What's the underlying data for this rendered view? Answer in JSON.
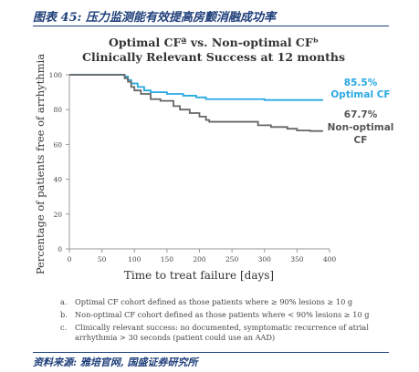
{
  "figure_label": "图表 45:  压力监测能有效提高房颤消融成功率",
  "source": "资料来源:  雅培官网, 国盛证券研究所",
  "chart_data": {
    "type": "line",
    "title_line1": "Optimal CFª vs. Non-optimal CFᵇ",
    "title_line2": "Clinically Relevant Success at 12 months",
    "xlabel": "Time to treat failure [days]",
    "ylabel": "Percentage of patients free of arrhythmia",
    "xlim": [
      0,
      400
    ],
    "ylim": [
      0,
      100
    ],
    "x_ticks": [
      "0",
      "50",
      "100",
      "150",
      "200",
      "250",
      "300",
      "350",
      "400"
    ],
    "y_ticks": [
      "0",
      "20",
      "40",
      "60",
      "80",
      "100"
    ],
    "grid": false,
    "series": [
      {
        "name": "Optimal CF",
        "color": "#29a8e0",
        "end_value_label": "85.5%",
        "end_name_label": "Optimal CF",
        "points": [
          [
            0,
            100
          ],
          [
            80,
            100
          ],
          [
            85,
            99
          ],
          [
            90,
            97
          ],
          [
            95,
            95
          ],
          [
            105,
            93
          ],
          [
            115,
            91
          ],
          [
            125,
            90
          ],
          [
            150,
            89
          ],
          [
            175,
            88
          ],
          [
            195,
            87
          ],
          [
            210,
            86
          ],
          [
            250,
            86
          ],
          [
            300,
            85.5
          ],
          [
            390,
            85.5
          ]
        ]
      },
      {
        "name": "Non-optimal CF",
        "color": "#666666",
        "end_value_label": "67.7%",
        "end_name_label_1": "Non-optimal",
        "end_name_label_2": "CF",
        "points": [
          [
            0,
            100
          ],
          [
            80,
            100
          ],
          [
            85,
            98
          ],
          [
            90,
            96
          ],
          [
            95,
            93
          ],
          [
            100,
            91
          ],
          [
            110,
            89
          ],
          [
            125,
            86
          ],
          [
            140,
            85
          ],
          [
            160,
            82
          ],
          [
            170,
            80
          ],
          [
            185,
            78
          ],
          [
            200,
            76
          ],
          [
            210,
            74
          ],
          [
            215,
            73
          ],
          [
            240,
            73
          ],
          [
            270,
            73
          ],
          [
            290,
            71
          ],
          [
            310,
            70
          ],
          [
            335,
            69
          ],
          [
            350,
            68
          ],
          [
            370,
            67.7
          ],
          [
            390,
            67.7
          ]
        ]
      }
    ]
  },
  "notes": [
    {
      "key": "a.",
      "text": "Optimal CF cohort defined as those patients where ≥ 90% lesions ≥ 10 g"
    },
    {
      "key": "b.",
      "text": "Non-optimal CF cohort defined as those patients where < 90% lesions ≥ 10 g"
    },
    {
      "key": "c.",
      "text": "Clinically relevant success: no documented, symptomatic recurrence of atrial arrhythmia > 30 seconds (patient could use an AAD)"
    }
  ]
}
